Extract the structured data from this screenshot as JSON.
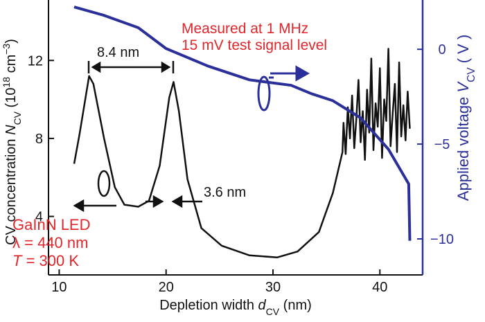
{
  "chart_data": {
    "type": "line",
    "xlabel": [
      {
        "text": "Depletion width "
      },
      {
        "text": "d",
        "style": "italic"
      },
      {
        "text": "CV",
        "style": "sub"
      },
      {
        "text": " (nm)"
      }
    ],
    "ylabel": [
      {
        "text": "CV concentration "
      },
      {
        "text": "N",
        "style": "italic"
      },
      {
        "text": "CV",
        "style": "sub"
      },
      {
        "text": " (10"
      },
      {
        "text": "18",
        "style": "sup"
      },
      {
        "text": " cm"
      },
      {
        "text": "−3",
        "style": "sup"
      },
      {
        "text": ")"
      }
    ],
    "y2label": [
      {
        "text": "Applied voltage  "
      },
      {
        "text": "V",
        "style": "italic"
      },
      {
        "text": "CV",
        "style": "sub"
      },
      {
        "text": " ( V )"
      }
    ],
    "xlim": [
      9,
      44
    ],
    "xticks": [
      10,
      20,
      30,
      40
    ],
    "ylim": [
      1.0,
      15.1
    ],
    "yticks": [
      4,
      8,
      12
    ],
    "y2lim": [
      -11.9,
      2.6
    ],
    "y2ticks": [
      {
        "value": 0,
        "label": "0"
      },
      {
        "value": -5,
        "label": "−5"
      },
      {
        "value": -10,
        "label": "−10"
      }
    ],
    "series": [
      {
        "color": "#111111",
        "x": [
          11.4,
          11.9,
          12.8,
          13.2,
          14.2,
          15.2,
          16.1,
          17.4,
          18.4,
          19.4,
          20.3,
          20.7,
          21.2,
          22.0,
          23.3,
          25.2,
          27.8,
          30.4,
          32.3,
          34.3,
          35.6,
          36.5,
          36.6,
          36.8,
          37.0,
          37.2,
          37.4,
          37.6,
          37.8,
          38.0,
          38.2,
          38.4,
          38.6,
          38.8,
          39.0,
          39.2,
          39.4,
          39.6,
          39.8,
          40.0,
          40.2,
          40.4,
          40.6,
          40.8,
          41.0,
          41.2,
          41.4,
          41.6,
          41.8,
          42.0,
          42.2,
          42.4,
          42.6,
          42.8
        ],
        "values": [
          6.7,
          8.2,
          11.2,
          10.8,
          8.0,
          5.5,
          4.6,
          4.5,
          4.8,
          6.6,
          10.1,
          10.9,
          9.4,
          5.9,
          3.4,
          2.5,
          2.0,
          1.9,
          2.2,
          3.2,
          5.2,
          7.3,
          8.8,
          7.2,
          9.6,
          8.0,
          10.2,
          7.5,
          9.0,
          11.0,
          7.8,
          9.4,
          6.9,
          10.5,
          8.3,
          12.1,
          7.4,
          9.8,
          8.6,
          11.6,
          7.0,
          10.0,
          8.9,
          12.6,
          7.6,
          9.3,
          10.8,
          7.3,
          11.9,
          8.1,
          9.7,
          7.9,
          10.4,
          8.5
        ]
      },
      {
        "color": "#2b2f9a",
        "axis": "y2",
        "x": [
          11.4,
          14.2,
          17.4,
          20.0,
          23.9,
          27.8,
          31.7,
          33.6,
          35.6,
          38.2,
          40.8,
          42.7,
          42.8
        ],
        "values": [
          2.23,
          1.79,
          1.14,
          0.04,
          -0.88,
          -1.61,
          -1.9,
          -2.34,
          -2.71,
          -3.62,
          -5.27,
          -7.1,
          -10.1
        ]
      }
    ],
    "annotations": {
      "measured": [
        {
          "text": "Measured at 1 MHz"
        }
      ],
      "signal": [
        {
          "text": "15 mV test signal level"
        }
      ],
      "width1": [
        {
          "text": "8.4 nm"
        }
      ],
      "width2": [
        {
          "text": "3.6 nm"
        }
      ],
      "device": [
        {
          "text": "GaInN LED"
        }
      ],
      "wavelength": [
        {
          "text": "λ = 440 nm"
        }
      ],
      "temperature": [
        {
          "text": "T",
          "style": "italic"
        },
        {
          "text": " = 300 K"
        }
      ]
    }
  }
}
